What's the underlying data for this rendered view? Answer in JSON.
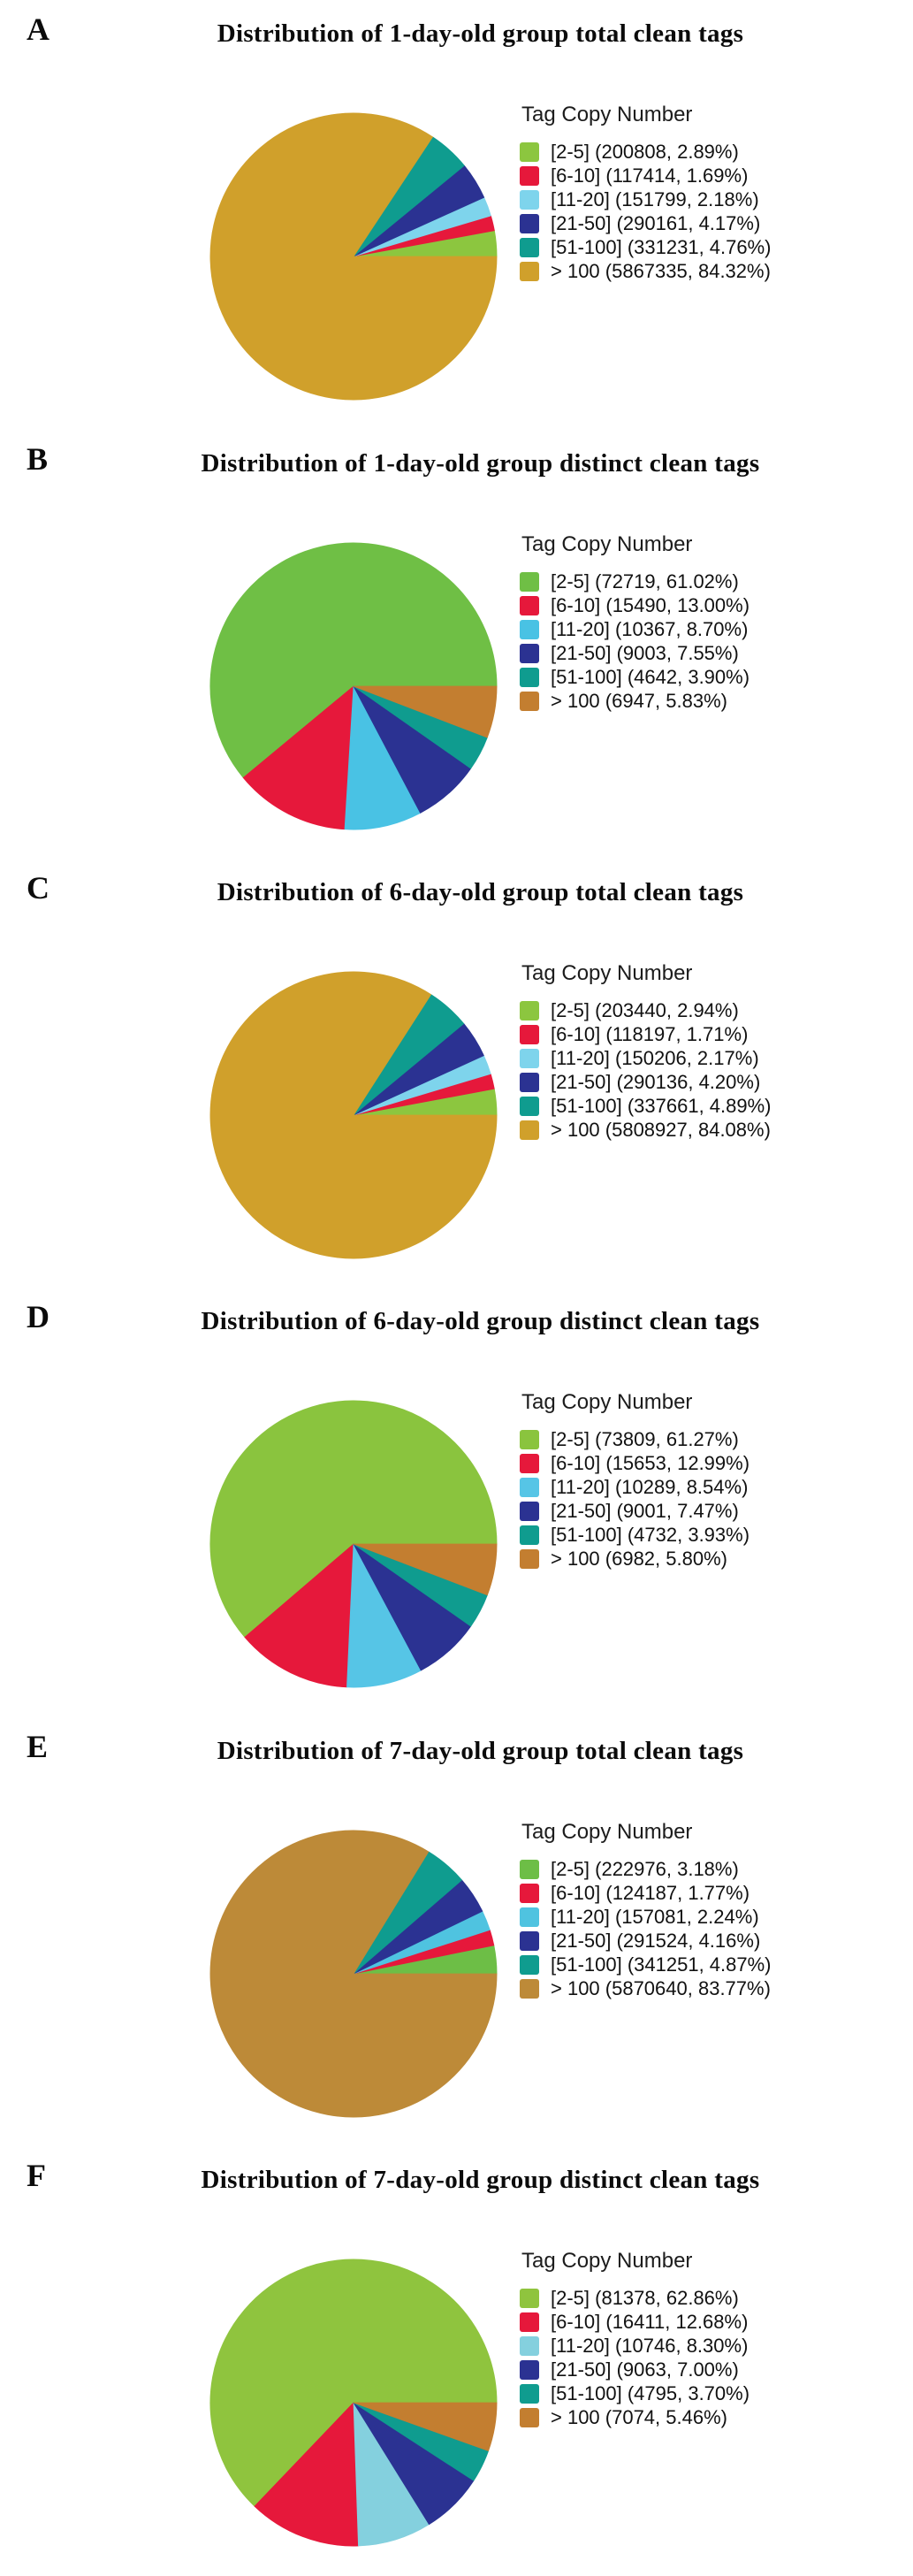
{
  "figure": {
    "legend_title": "Tag Copy Number",
    "panel_labels": [
      "A",
      "B",
      "C",
      "D",
      "E",
      "F"
    ]
  },
  "chart_data": [
    {
      "panel": "A",
      "type": "pie",
      "title": "Distribution of 1-day-old group total clean tags",
      "legend_title": "Tag Copy Number",
      "legend_position": "right",
      "direction": "counterclockwise",
      "start_angle_deg": 0,
      "categories": [
        "[2-5]",
        "[6-10]",
        "[11-20]",
        "[21-50]",
        "[51-100]",
        "> 100"
      ],
      "counts": [
        200808,
        117414,
        151799,
        290161,
        331231,
        5867335
      ],
      "percents": [
        "2.89",
        "1.69",
        "2.18",
        "4.17",
        "4.76",
        "84.32"
      ],
      "colors": [
        "#8CC63F",
        "#E6183B",
        "#7ED4EC",
        "#2B3292",
        "#0F9C8F",
        "#D0A02B"
      ]
    },
    {
      "panel": "B",
      "type": "pie",
      "title": "Distribution of 1-day-old group distinct clean tags",
      "legend_title": "Tag Copy Number",
      "legend_position": "right",
      "direction": "counterclockwise",
      "start_angle_deg": 0,
      "categories": [
        "[2-5]",
        "[6-10]",
        "[11-20]",
        "[21-50]",
        "[51-100]",
        "> 100"
      ],
      "counts": [
        72719,
        15490,
        10367,
        9003,
        4642,
        6947
      ],
      "percents": [
        "61.02",
        "13.00",
        "8.70",
        "7.55",
        "3.90",
        "5.83"
      ],
      "colors": [
        "#6FBF45",
        "#E6183B",
        "#49C2E4",
        "#2B3292",
        "#0F9C8F",
        "#C37E30"
      ]
    },
    {
      "panel": "C",
      "type": "pie",
      "title": "Distribution of 6-day-old group total clean tags",
      "legend_title": "Tag Copy Number",
      "legend_position": "right",
      "direction": "counterclockwise",
      "start_angle_deg": 0,
      "categories": [
        "[2-5]",
        "[6-10]",
        "[11-20]",
        "[21-50]",
        "[51-100]",
        "> 100"
      ],
      "counts": [
        203440,
        118197,
        150206,
        290136,
        337661,
        5808927
      ],
      "percents": [
        "2.94",
        "1.71",
        "2.17",
        "4.20",
        "4.89",
        "84.08"
      ],
      "colors": [
        "#8CC63F",
        "#E6183B",
        "#7ED4EC",
        "#2B3292",
        "#0F9C8F",
        "#D0A02B"
      ]
    },
    {
      "panel": "D",
      "type": "pie",
      "title": "Distribution of 6-day-old group distinct clean tags",
      "legend_title": "Tag Copy Number",
      "legend_position": "right",
      "direction": "counterclockwise",
      "start_angle_deg": 0,
      "categories": [
        "[2-5]",
        "[6-10]",
        "[11-20]",
        "[21-50]",
        "[51-100]",
        "> 100"
      ],
      "counts": [
        73809,
        15653,
        10289,
        9001,
        4732,
        6982
      ],
      "percents": [
        "61.27",
        "12.99",
        "8.54",
        "7.47",
        "3.93",
        "5.80"
      ],
      "colors": [
        "#8AC43E",
        "#E6183B",
        "#56C5E6",
        "#2B3292",
        "#0F9C8F",
        "#C37E30"
      ]
    },
    {
      "panel": "E",
      "type": "pie",
      "title": "Distribution of 7-day-old group total clean tags",
      "legend_title": "Tag Copy Number",
      "legend_position": "right",
      "direction": "counterclockwise",
      "start_angle_deg": 0,
      "categories": [
        "[2-5]",
        "[6-10]",
        "[11-20]",
        "[21-50]",
        "[51-100]",
        "> 100"
      ],
      "counts": [
        222976,
        124187,
        157081,
        291524,
        341251,
        5870640
      ],
      "percents": [
        "3.18",
        "1.77",
        "2.24",
        "4.16",
        "4.87",
        "83.77"
      ],
      "colors": [
        "#6DBE46",
        "#E6183B",
        "#4FC3E0",
        "#2B3292",
        "#0F9C8F",
        "#BD8A38"
      ]
    },
    {
      "panel": "F",
      "type": "pie",
      "title": "Distribution of 7-day-old group distinct clean tags",
      "legend_title": "Tag Copy Number",
      "legend_position": "right",
      "direction": "counterclockwise",
      "start_angle_deg": 0,
      "categories": [
        "[2-5]",
        "[6-10]",
        "[11-20]",
        "[21-50]",
        "[51-100]",
        "> 100"
      ],
      "counts": [
        81378,
        16411,
        10746,
        9063,
        4795,
        7074
      ],
      "percents": [
        "62.86",
        "12.68",
        "8.30",
        "7.00",
        "3.70",
        "5.46"
      ],
      "colors": [
        "#8FC43E",
        "#E6183B",
        "#84D0DE",
        "#2B3292",
        "#0F9C8F",
        "#C37E30"
      ]
    }
  ]
}
